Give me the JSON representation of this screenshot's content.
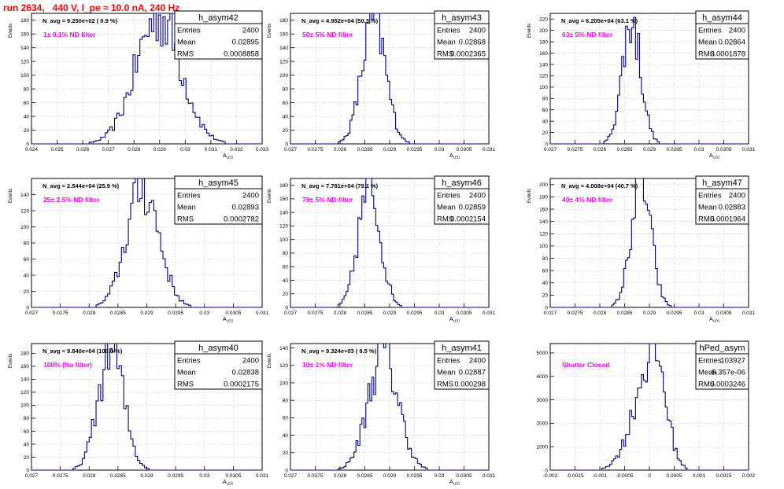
{
  "page": {
    "title": "run 2634,   440 V, I_pe ≈ 10.0 nA, 240 Hz",
    "title_color": "#ff0000",
    "stat_labels": {
      "entries": "Entries",
      "mean": "Mean",
      "rms": "RMS"
    },
    "colors": {
      "hist": "#000080",
      "annotation": "#ff00ff",
      "grid": "#bbbbbb"
    }
  },
  "chart_data": [
    {
      "type": "bar",
      "name": "h_asym42",
      "ylabel": "Events",
      "xlabel": "A_{LED}",
      "grid": true,
      "xlim": [
        0.024,
        0.033
      ],
      "ylim": [
        0,
        190
      ],
      "xticks": [
        "0.024",
        "0.025",
        "0.026",
        "0.027",
        "0.028",
        "0.029",
        "0.03",
        "0.031",
        "0.032",
        "0.033"
      ],
      "yticks": [
        "0",
        "20",
        "40",
        "60",
        "80",
        "100",
        "120",
        "140",
        "160",
        "180"
      ],
      "navg": "N_avg = 9.250e+02 ( 0.9 %)",
      "annotation": "1± 0.1% ND filter",
      "stats": {
        "entries": "2400",
        "mean": "0.02895",
        "rms": "0.0008858"
      },
      "fill": {
        "mean": 0.02895,
        "sigma": 0.00088,
        "peak": 185
      }
    },
    {
      "type": "bar",
      "name": "h_asym43",
      "ylabel": "Events",
      "xlabel": "A_{LED}",
      "grid": true,
      "xlim": [
        0.027,
        0.031
      ],
      "ylim": [
        0,
        190
      ],
      "xticks": [
        "0.027",
        "0.0275",
        "0.028",
        "0.0285",
        "0.029",
        "0.0295",
        "0.03",
        "0.0305",
        "0.031"
      ],
      "yticks": [
        "0",
        "20",
        "40",
        "60",
        "80",
        "100",
        "120",
        "140",
        "160",
        "180"
      ],
      "navg": "N_avg = 4.952e+04 (50.3 %)",
      "annotation": "50± 5% ND filter",
      "stats": {
        "entries": "2400",
        "mean": "0.02868",
        "rms": "0.0002365"
      },
      "fill": {
        "mean": 0.02868,
        "sigma": 0.00024,
        "peak": 180
      }
    },
    {
      "type": "bar",
      "name": "h_asym44",
      "ylabel": "Events",
      "xlabel": "A_{LED}",
      "grid": true,
      "xlim": [
        0.027,
        0.031
      ],
      "ylim": [
        0,
        230
      ],
      "xticks": [
        "0.027",
        "0.0275",
        "0.028",
        "0.0285",
        "0.029",
        "0.0295",
        "0.03",
        "0.0305",
        "0.031"
      ],
      "yticks": [
        "0",
        "20",
        "40",
        "60",
        "80",
        "100",
        "120",
        "140",
        "160",
        "180",
        "200",
        "220"
      ],
      "navg": "N_avg = 6.205e+04 (63.1 %)",
      "annotation": "63± 5% ND filter",
      "stats": {
        "entries": "2400",
        "mean": "0.02864",
        "rms": "0.0001878"
      },
      "fill": {
        "mean": 0.02864,
        "sigma": 0.00019,
        "peak": 215
      }
    },
    {
      "type": "bar",
      "name": "h_asym45",
      "ylabel": "Events",
      "xlabel": "A_{LED}",
      "grid": true,
      "xlim": [
        0.027,
        0.031
      ],
      "ylim": [
        0,
        160
      ],
      "xticks": [
        "0.027",
        "0.0275",
        "0.028",
        "0.0285",
        "0.029",
        "0.0295",
        "0.03",
        "0.0305",
        "0.031"
      ],
      "yticks": [
        "0",
        "20",
        "40",
        "60",
        "80",
        "100",
        "120",
        "140"
      ],
      "navg": "N_avg = 2.544e+04 (25.9 %)",
      "annotation": "25± 2.5% ND filter",
      "stats": {
        "entries": "2400",
        "mean": "0.02893",
        "rms": "0.0002782"
      },
      "fill": {
        "mean": 0.02893,
        "sigma": 0.00028,
        "peak": 150
      }
    },
    {
      "type": "bar",
      "name": "h_asym46",
      "ylabel": "Events",
      "xlabel": "A_{LED}",
      "grid": true,
      "xlim": [
        0.027,
        0.031
      ],
      "ylim": [
        0,
        190
      ],
      "xticks": [
        "0.027",
        "0.0275",
        "0.028",
        "0.0285",
        "0.029",
        "0.0295",
        "0.03",
        "0.0305",
        "0.031"
      ],
      "yticks": [
        "0",
        "20",
        "40",
        "60",
        "80",
        "100",
        "120",
        "140",
        "160",
        "180"
      ],
      "navg": "N_avg = 7.781e+04 (79.1 %)",
      "annotation": "79± 5% ND filter",
      "stats": {
        "entries": "2400",
        "mean": "0.02859",
        "rms": "0.0002154"
      },
      "fill": {
        "mean": 0.02859,
        "sigma": 0.00022,
        "peak": 178
      }
    },
    {
      "type": "bar",
      "name": "h_asym47",
      "ylabel": "Events",
      "xlabel": "A_{LED}",
      "grid": true,
      "xlim": [
        0.027,
        0.031
      ],
      "ylim": [
        0,
        210
      ],
      "xticks": [
        "0.027",
        "0.0275",
        "0.028",
        "0.0285",
        "0.029",
        "0.0295",
        "0.03",
        "0.0305",
        "0.031"
      ],
      "yticks": [
        "0",
        "20",
        "40",
        "60",
        "80",
        "100",
        "120",
        "140",
        "160",
        "180",
        "200"
      ],
      "navg": "N_avg = 4.008e+04 (40.7 %)",
      "annotation": "40± 4% ND filter",
      "stats": {
        "entries": "2400",
        "mean": "0.02883",
        "rms": "0.0001964"
      },
      "fill": {
        "mean": 0.02883,
        "sigma": 0.0002,
        "peak": 205
      }
    },
    {
      "type": "bar",
      "name": "h_asym40",
      "ylabel": "Events",
      "xlabel": "A_{LED}",
      "grid": true,
      "xlim": [
        0.027,
        0.031
      ],
      "ylim": [
        0,
        195
      ],
      "xticks": [
        "0.027",
        "0.0275",
        "0.028",
        "0.0285",
        "0.029",
        "0.0295",
        "0.03",
        "0.0305",
        "0.031"
      ],
      "yticks": [
        "0",
        "20",
        "40",
        "60",
        "80",
        "100",
        "120",
        "140",
        "160",
        "180"
      ],
      "navg": "N_avg = 9.840e+04 (100.0 %)",
      "annotation": "100% (No filter)",
      "stats": {
        "entries": "2400",
        "mean": "0.02838",
        "rms": "0.0002175"
      },
      "fill": {
        "mean": 0.02838,
        "sigma": 0.00022,
        "peak": 185
      }
    },
    {
      "type": "bar",
      "name": "h_asym41",
      "ylabel": "Events",
      "xlabel": "A_{LED}",
      "grid": true,
      "xlim": [
        0.027,
        0.031
      ],
      "ylim": [
        0,
        145
      ],
      "xticks": [
        "0.027",
        "0.0275",
        "0.028",
        "0.0285",
        "0.029",
        "0.0295",
        "0.03",
        "0.0305",
        "0.031"
      ],
      "yticks": [
        "0",
        "20",
        "40",
        "60",
        "80",
        "100",
        "120",
        "140"
      ],
      "navg": "N_avg = 9.324e+03 ( 9.5 %)",
      "annotation": "10± 1% ND filter",
      "stats": {
        "entries": "2400",
        "mean": "0.02887",
        "rms": "0.000298"
      },
      "fill": {
        "mean": 0.02887,
        "sigma": 0.0003,
        "peak": 135
      }
    },
    {
      "type": "bar",
      "name": "hPed_asym",
      "ylabel": "",
      "xlabel": "",
      "grid": true,
      "xlim": [
        -0.002,
        0.002
      ],
      "ylim": [
        0,
        5400
      ],
      "xticks": [
        "-0.002",
        "-0.0015",
        "-0.001",
        "-0.0005",
        "0",
        "0.0005",
        "0.001",
        "0.0015",
        "0.002"
      ],
      "yticks": [
        "0",
        "1000",
        "2000",
        "3000",
        "4000",
        "5000"
      ],
      "navg": "",
      "annotation": "Shutter Closed",
      "stats": {
        "entries": "103927",
        "mean": "5.357e-06",
        "rms": "0.0003246"
      },
      "fill": {
        "mean": 0.0001,
        "sigma": 0.00031,
        "peak": 5100,
        "skew": true
      }
    }
  ]
}
